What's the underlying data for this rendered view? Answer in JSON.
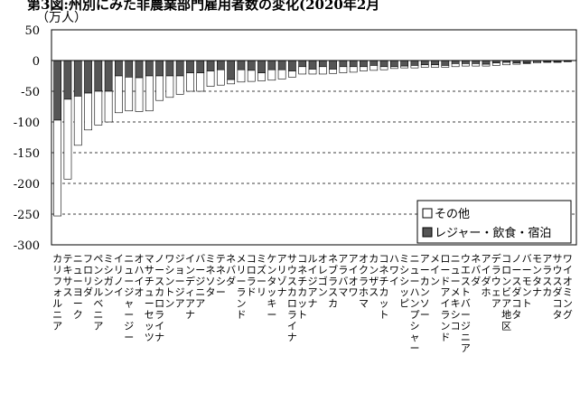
{
  "chart_data": {
    "type": "bar",
    "title": "第3図:州別にみた非農業部門雇用者数の変化(2020年2月",
    "y_unit": "（万人）",
    "ylim": [
      -300,
      50
    ],
    "yticks": [
      50,
      0,
      -50,
      -100,
      -150,
      -200,
      -250,
      -300
    ],
    "gridlines": "dashed horizontal at -50 intervals",
    "legend_position": "bottom-right",
    "categories": [
      "カリフォルニア",
      "テキサス",
      "ニューヨーク",
      "フロリダ",
      "ペンシルベニア",
      "ミシガン",
      "イリノイ",
      "ニュージャージー",
      "オハイオ",
      "マサチューセッツ",
      "ノースカロライナ",
      "ワシントン",
      "ジョージア",
      "インディアナ",
      "バージニア",
      "ミネソタ",
      "テネシー",
      "ネバダ",
      "メリーランド",
      "コロラド",
      "ミズーリ",
      "ケンタッキー",
      "アリゾナ",
      "サウスカロライナ",
      "コネチカット",
      "ルイジアナ",
      "オレゴン",
      "ネブラスカ",
      "アラバマ",
      "アイオワ",
      "オクラホマ",
      "カンザス",
      "コネチカット",
      "ハワイ",
      "ミシシッピ",
      "ニューハンプシャー",
      "アーカンソー",
      "メイン",
      "ロードアイランド",
      "ニューメキシコ",
      "ウエストバージニア",
      "ネバダ",
      "アイダホ",
      "デラウェア",
      "コロンビア地区",
      "ノースダコタ",
      "バーモント",
      "モンタナ",
      "アラスカ",
      "サウスダコタ",
      "ワイオミング"
    ],
    "series": [
      {
        "name": "その他",
        "color": "#ffffff",
        "values": [
          -156,
          -130,
          -80,
          -60,
          -55,
          -50,
          -60,
          -55,
          -55,
          -57,
          -40,
          -35,
          -30,
          -30,
          -30,
          -25,
          -25,
          -7,
          -20,
          -18,
          -13,
          -17,
          -15,
          -10,
          -12,
          -8,
          -12,
          -7,
          -10,
          -9,
          -7,
          -8,
          -5,
          -3,
          -3,
          -4,
          -4,
          -4,
          -3,
          -5,
          -4,
          -4,
          -3,
          -4,
          -4,
          -2,
          -1,
          -2,
          -1,
          -1,
          -1
        ]
      },
      {
        "name": "レジャー・飲食・宿泊",
        "color": "#555555",
        "values": [
          -97,
          -63,
          -58,
          -53,
          -50,
          -50,
          -25,
          -27,
          -28,
          -25,
          -25,
          -25,
          -25,
          -20,
          -20,
          -17,
          -15,
          -31,
          -15,
          -16,
          -20,
          -15,
          -15,
          -17,
          -10,
          -14,
          -10,
          -14,
          -10,
          -10,
          -10,
          -8,
          -10,
          -10,
          -9,
          -8,
          -7,
          -7,
          -8,
          -5,
          -5,
          -5,
          -6,
          -4,
          -3,
          -4,
          -4,
          -2,
          -2,
          -2,
          -1
        ]
      }
    ]
  },
  "x_tick_labels": [
    "カリフォルニア",
    "テキサス",
    "ニューヨーク",
    "フロリダ",
    "ペンシルベニア",
    "ミシガン",
    "イリノイ",
    "ニュージャージー",
    "オハイオ",
    "マサチューセッツ",
    "ノースカロライナ",
    "ワシントン",
    "ジョージア",
    "インディアナ",
    "バージニア",
    "ミネソタ",
    "テネシー",
    "ネバダ",
    "メリーランド",
    "コロラド",
    "ミズーリ",
    "ケンタッキー",
    "アリゾナ",
    "サウスカロライナ",
    "コネチカット",
    "ルイジアナ",
    "オレゴン",
    "ネブラスカ",
    "アラバマ",
    "アイオワ",
    "オクラホマ",
    "カンザス",
    "コネチカット",
    "ハワイ",
    "ミシシッピ",
    "ニューハンプシャー",
    "アーカンソー",
    "メイン",
    "ロードアイランド",
    "ニューメキシコ",
    "ウエストバージニア",
    "ネバダ",
    "アイダホ",
    "デラウェア",
    "コロンビア地区",
    "ノースダコタ",
    "バーモント",
    "モンタナ",
    "アラスカ",
    "サウスダコタ",
    "ワイオミング"
  ]
}
